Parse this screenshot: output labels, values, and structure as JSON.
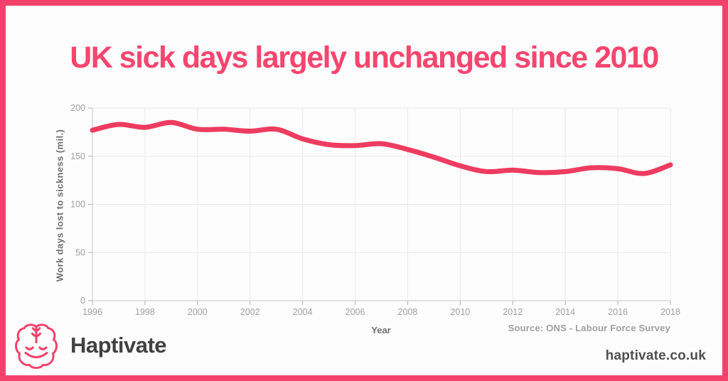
{
  "frame": {
    "border_color": "#f2426b",
    "background_color": "#fdfdfd"
  },
  "title": {
    "text": "UK sick days largely unchanged since 2010",
    "color": "#f5466f"
  },
  "chart_data": {
    "type": "line",
    "title": "UK sick days largely unchanged since 2010",
    "xlabel": "Year",
    "ylabel": "Work days lost to sickness (mil.)",
    "xlim": [
      1996,
      2018
    ],
    "ylim": [
      0,
      200
    ],
    "xticks": [
      1996,
      1998,
      2000,
      2002,
      2004,
      2006,
      2008,
      2010,
      2012,
      2014,
      2016,
      2018
    ],
    "yticks": [
      0,
      50,
      100,
      150,
      200
    ],
    "grid": true,
    "legend": false,
    "x": [
      1996,
      1997,
      1998,
      1999,
      2000,
      2001,
      2002,
      2003,
      2004,
      2005,
      2006,
      2007,
      2008,
      2009,
      2010,
      2011,
      2012,
      2013,
      2014,
      2015,
      2016,
      2017,
      2018
    ],
    "series": [
      {
        "name": "Work days lost to sickness (mil.)",
        "color": "#ee3c60",
        "line_width": 7,
        "smooth": true,
        "values": [
          177,
          183,
          180,
          185,
          178,
          178,
          176,
          178,
          168,
          162,
          161,
          163,
          157,
          149,
          140,
          134,
          135.5,
          133,
          134,
          138,
          137,
          132,
          141
        ]
      }
    ],
    "style": {
      "gridline_color": "#e9e9e9",
      "axis_color": "#c6c6c6",
      "tick_color": "#aeaeae",
      "tick_label_color": "#9e9e9e"
    }
  },
  "source": {
    "text": "Source: ONS - Labour Force Survey"
  },
  "footer": {
    "logo_icon": "brain-icon",
    "logo_color": "#f2426b",
    "brand": "Haptivate",
    "website": "haptivate.co.uk"
  }
}
